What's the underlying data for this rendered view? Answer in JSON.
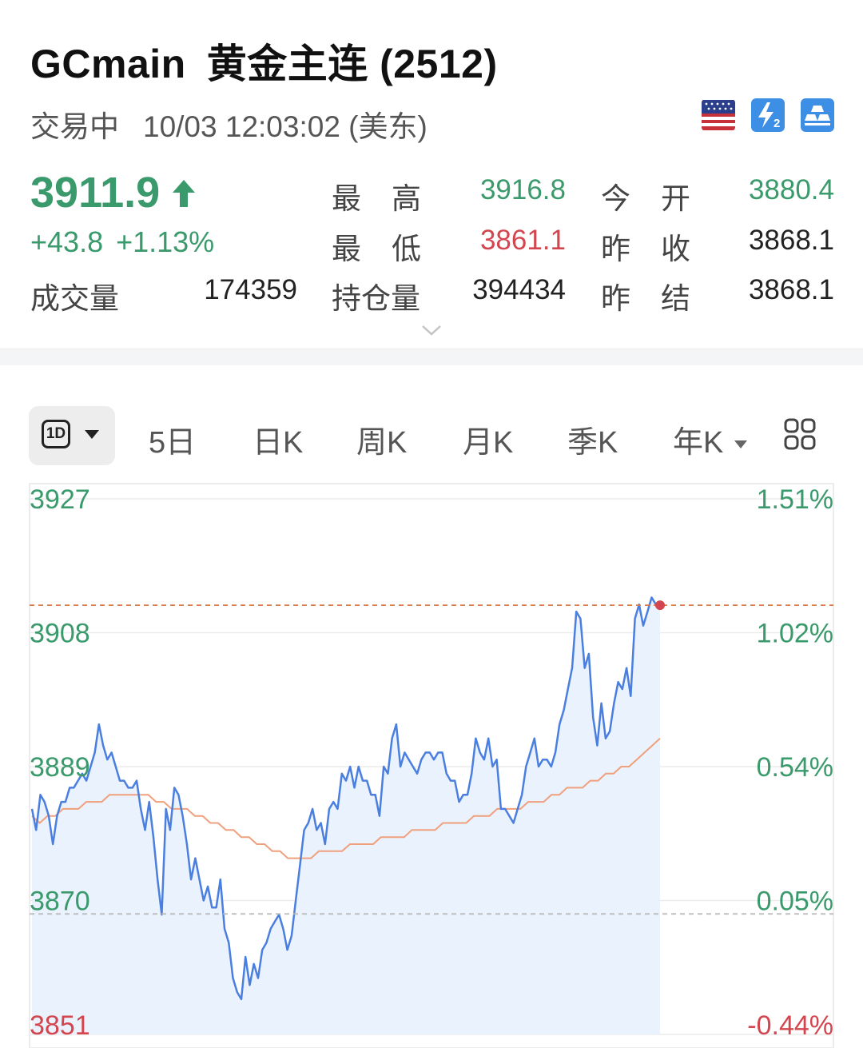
{
  "header": {
    "code": "GCmain",
    "name": "黄金主连 (2512)",
    "status": "交易中",
    "time": "10/03 12:03:02 (美东)"
  },
  "badges": [
    "us-flag-icon",
    "level2-icon",
    "gold-bars-icon"
  ],
  "quote": {
    "last": "3911.9",
    "change": "+43.8",
    "change_pct": "+1.13%",
    "volume_label": "成交量",
    "volume": "174359",
    "high_label": "最高",
    "high": "3916.8",
    "low_label": "最低",
    "low": "3861.1",
    "oi_label": "持仓量",
    "oi": "394434",
    "open_label": "今开",
    "open": "3880.4",
    "prev_close_label": "昨收",
    "prev_close": "3868.1",
    "prev_settle_label": "昨结",
    "prev_settle": "3868.1"
  },
  "tabs": {
    "active": "1D",
    "items": [
      "5日",
      "日K",
      "周K",
      "月K",
      "季K",
      "年K"
    ]
  },
  "colors": {
    "up": "#3a9a6c",
    "down": "#d4464f",
    "price_line": "#4a7fe0",
    "avg_line": "#f0a07c"
  },
  "chart_data": {
    "type": "line",
    "title": "",
    "y_ticks_left": [
      "3927",
      "3908",
      "3889",
      "3870",
      "3851"
    ],
    "y_ticks_right": [
      "1.51%",
      "1.02%",
      "0.54%",
      "0.05%",
      "-0.44%"
    ],
    "ylim": [
      3851,
      3927
    ],
    "reference_lines": {
      "last_price": 3911.9,
      "prev_close": 3868.1
    },
    "series": [
      {
        "values": [
          3883,
          3880,
          3885,
          3884,
          3882,
          3878,
          3882,
          3884,
          3884,
          3886,
          3886,
          3887,
          3888,
          3887,
          3889,
          3891,
          3895,
          3892,
          3890,
          3891,
          3889,
          3887,
          3887,
          3886,
          3886,
          3887,
          3883,
          3880,
          3884,
          3879,
          3873,
          3868,
          3883,
          3880,
          3886,
          3885,
          3882,
          3878,
          3873,
          3876,
          3873,
          3870,
          3872,
          3869,
          3869,
          3873,
          3866,
          3864,
          3859,
          3857,
          3856,
          3862,
          3858,
          3861,
          3859,
          3863,
          3864,
          3866,
          3867,
          3868,
          3866,
          3863,
          3865,
          3870,
          3875,
          3880,
          3881,
          3883,
          3880,
          3881,
          3878,
          3883,
          3884,
          3883,
          3888,
          3887,
          3889,
          3886,
          3889,
          3887,
          3887,
          3885,
          3885,
          3882,
          3889,
          3888,
          3893,
          3895,
          3889,
          3891,
          3890,
          3889,
          3888,
          3890,
          3891,
          3891,
          3890,
          3891,
          3891,
          3888,
          3887,
          3887,
          3884,
          3885,
          3885,
          3888,
          3893,
          3891,
          3890,
          3893,
          3889,
          3890,
          3883,
          3883,
          3882,
          3881,
          3883,
          3885,
          3889,
          3891,
          3893,
          3889,
          3890,
          3890,
          3889,
          3891,
          3895,
          3897,
          3900,
          3903,
          3911,
          3910,
          3903,
          3905,
          3896,
          3892,
          3898,
          3893,
          3894,
          3898,
          3901,
          3900,
          3903,
          3899,
          3910,
          3912,
          3909,
          3911,
          3913,
          3912,
          3911.9
        ],
        "avg_values": [
          3882,
          3881,
          3882,
          3882,
          3883,
          3883,
          3883,
          3884,
          3884,
          3884,
          3885,
          3885,
          3885,
          3885,
          3885,
          3885,
          3884,
          3884,
          3883,
          3883,
          3883,
          3882,
          3882,
          3881,
          3881,
          3880,
          3880,
          3879,
          3879,
          3878,
          3878,
          3877,
          3877,
          3876,
          3876,
          3876,
          3876,
          3877,
          3877,
          3877,
          3877,
          3878,
          3878,
          3878,
          3878,
          3879,
          3879,
          3879,
          3879,
          3880,
          3880,
          3880,
          3880,
          3881,
          3881,
          3881,
          3881,
          3882,
          3882,
          3882,
          3883,
          3883,
          3883,
          3883,
          3884,
          3884,
          3884,
          3885,
          3885,
          3886,
          3886,
          3886,
          3887,
          3887,
          3888,
          3888,
          3889,
          3889,
          3890,
          3891,
          3892,
          3893
        ]
      }
    ]
  }
}
